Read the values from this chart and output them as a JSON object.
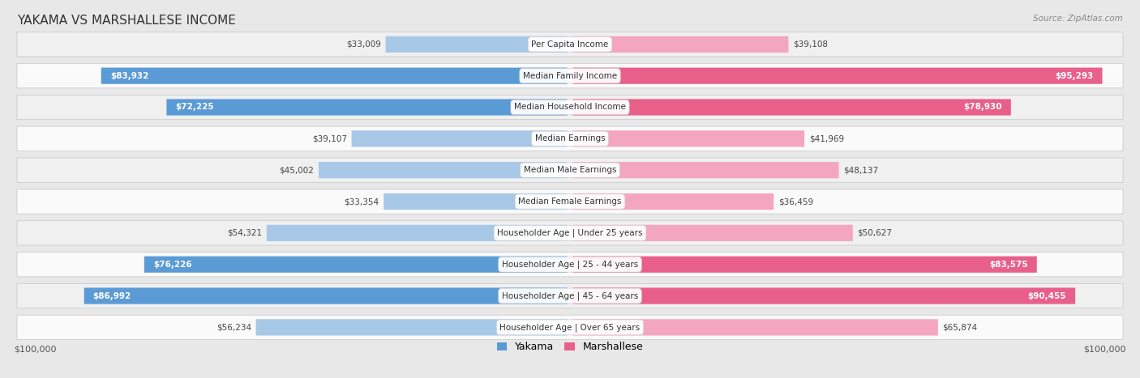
{
  "title": "YAKAMA VS MARSHALLESE INCOME",
  "source": "Source: ZipAtlas.com",
  "categories": [
    "Per Capita Income",
    "Median Family Income",
    "Median Household Income",
    "Median Earnings",
    "Median Male Earnings",
    "Median Female Earnings",
    "Householder Age | Under 25 years",
    "Householder Age | 25 - 44 years",
    "Householder Age | 45 - 64 years",
    "Householder Age | Over 65 years"
  ],
  "yakama_values": [
    33009,
    83932,
    72225,
    39107,
    45002,
    33354,
    54321,
    76226,
    86992,
    56234
  ],
  "marshallese_values": [
    39108,
    95293,
    78930,
    41969,
    48137,
    36459,
    50627,
    83575,
    90455,
    65874
  ],
  "yakama_light": "#a8c8e8",
  "yakama_dark": "#5b9bd5",
  "marshallese_light": "#f4a6c0",
  "marshallese_dark": "#e8608a",
  "max_value": 100000,
  "bg_color": "#e8e8e8",
  "row_bg_even": "#f0f0f0",
  "row_bg_odd": "#fafafa",
  "title_fontsize": 11,
  "source_fontsize": 7.5,
  "label_fontsize": 7.5,
  "value_fontsize": 7.5,
  "axis_fontsize": 8,
  "legend_yakama": "Yakama",
  "legend_marshallese": "Marshallese",
  "dark_rows_yakama": [
    1,
    2,
    7,
    8
  ],
  "dark_rows_marshallese": [
    1,
    2,
    7,
    8
  ]
}
